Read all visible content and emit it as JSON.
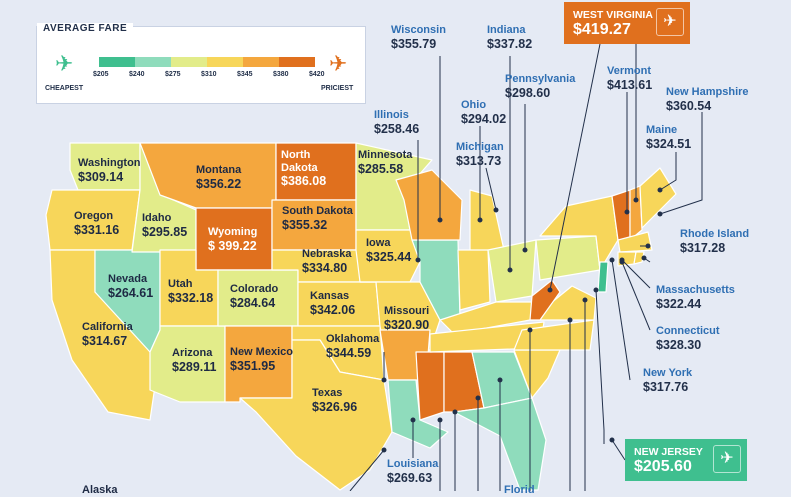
{
  "legend": {
    "title": "AVERAGE FARE",
    "cheapest_label": "CHEAPEST",
    "priciest_label": "PRICIEST",
    "ticks": [
      "$205",
      "$240",
      "$275",
      "$310",
      "$345",
      "$380",
      "$420"
    ],
    "colors": [
      "#3fbf8f",
      "#8fdcbc",
      "#e2ec8a",
      "#f7d65a",
      "#f4a73e",
      "#e0701e"
    ],
    "left_icon": "plane-icon",
    "right_icon": "plane-icon"
  },
  "callouts": {
    "west_virginia": {
      "name": "WEST VIRGINIA",
      "value": "$419.27",
      "color": "#e0701e"
    },
    "new_jersey": {
      "name": "NEW JERSEY",
      "value": "$205.60",
      "color": "#3fbf8f"
    }
  },
  "states": [
    {
      "id": "washington",
      "name": "Washington",
      "value": "$309.14",
      "fare": 309.14
    },
    {
      "id": "oregon",
      "name": "Oregon",
      "value": "$331.16",
      "fare": 331.16
    },
    {
      "id": "california",
      "name": "California",
      "value": "$314.67",
      "fare": 314.67
    },
    {
      "id": "nevada",
      "name": "Nevada",
      "value": "$264.61",
      "fare": 264.61
    },
    {
      "id": "idaho",
      "name": "Idaho",
      "value": "$295.85",
      "fare": 295.85
    },
    {
      "id": "montana",
      "name": "Montana",
      "value": "$356.22",
      "fare": 356.22
    },
    {
      "id": "wyoming",
      "name": "Wyoming",
      "value": "$ 399.22",
      "fare": 399.22
    },
    {
      "id": "utah",
      "name": "Utah",
      "value": "$332.18",
      "fare": 332.18
    },
    {
      "id": "arizona",
      "name": "Arizona",
      "value": "$289.11",
      "fare": 289.11
    },
    {
      "id": "colorado",
      "name": "Colorado",
      "value": "$284.64",
      "fare": 284.64
    },
    {
      "id": "new_mexico",
      "name": "New Mexico",
      "value": "$351.95",
      "fare": 351.95
    },
    {
      "id": "north_dakota",
      "name": "North Dakota",
      "value": "$386.08",
      "fare": 386.08
    },
    {
      "id": "south_dakota",
      "name": "South Dakota",
      "value": "$355.32",
      "fare": 355.32
    },
    {
      "id": "nebraska",
      "name": "Nebraska",
      "value": "$334.80",
      "fare": 334.8
    },
    {
      "id": "kansas",
      "name": "Kansas",
      "value": "$342.06",
      "fare": 342.06
    },
    {
      "id": "oklahoma",
      "name": "Oklahoma",
      "value": "$344.59",
      "fare": 344.59
    },
    {
      "id": "texas",
      "name": "Texas",
      "value": "$326.96",
      "fare": 326.96
    },
    {
      "id": "minnesota",
      "name": "Minnesota",
      "value": "$285.58",
      "fare": 285.58
    },
    {
      "id": "iowa",
      "name": "Iowa",
      "value": "$325.44",
      "fare": 325.44
    },
    {
      "id": "missouri",
      "name": "Missouri",
      "value": "$320.90",
      "fare": 320.9
    },
    {
      "id": "louisiana",
      "name": "Louisiana",
      "value": "$269.63",
      "fare": 269.63
    },
    {
      "id": "illinois",
      "name": "Illinois",
      "value": "$258.46",
      "fare": 258.46
    },
    {
      "id": "wisconsin",
      "name": "Wisconsin",
      "value": "$355.79",
      "fare": 355.79
    },
    {
      "id": "michigan",
      "name": "Michigan",
      "value": "$313.73",
      "fare": 313.73
    },
    {
      "id": "indiana",
      "name": "Indiana",
      "value": "$337.82",
      "fare": 337.82
    },
    {
      "id": "ohio",
      "name": "Ohio",
      "value": "$294.02",
      "fare": 294.02
    },
    {
      "id": "pennsylvania",
      "name": "Pennsylvania",
      "value": "$298.60",
      "fare": 298.6
    },
    {
      "id": "new_york",
      "name": "New York",
      "value": "$317.76",
      "fare": 317.76
    },
    {
      "id": "vermont",
      "name": "Vermont",
      "value": "$413.61",
      "fare": 413.61
    },
    {
      "id": "new_hampshire",
      "name": "New Hampshire",
      "value": "$360.54",
      "fare": 360.54
    },
    {
      "id": "maine",
      "name": "Maine",
      "value": "$324.51",
      "fare": 324.51
    },
    {
      "id": "massachusetts",
      "name": "Massachusetts",
      "value": "$322.44",
      "fare": 322.44
    },
    {
      "id": "rhode_island",
      "name": "Rhode Island",
      "value": "$317.28",
      "fare": 317.28
    },
    {
      "id": "connecticut",
      "name": "Connecticut",
      "value": "$328.30",
      "fare": 328.3
    }
  ],
  "partial_labels": {
    "alaska": "Alaska",
    "florida": "Florid"
  }
}
